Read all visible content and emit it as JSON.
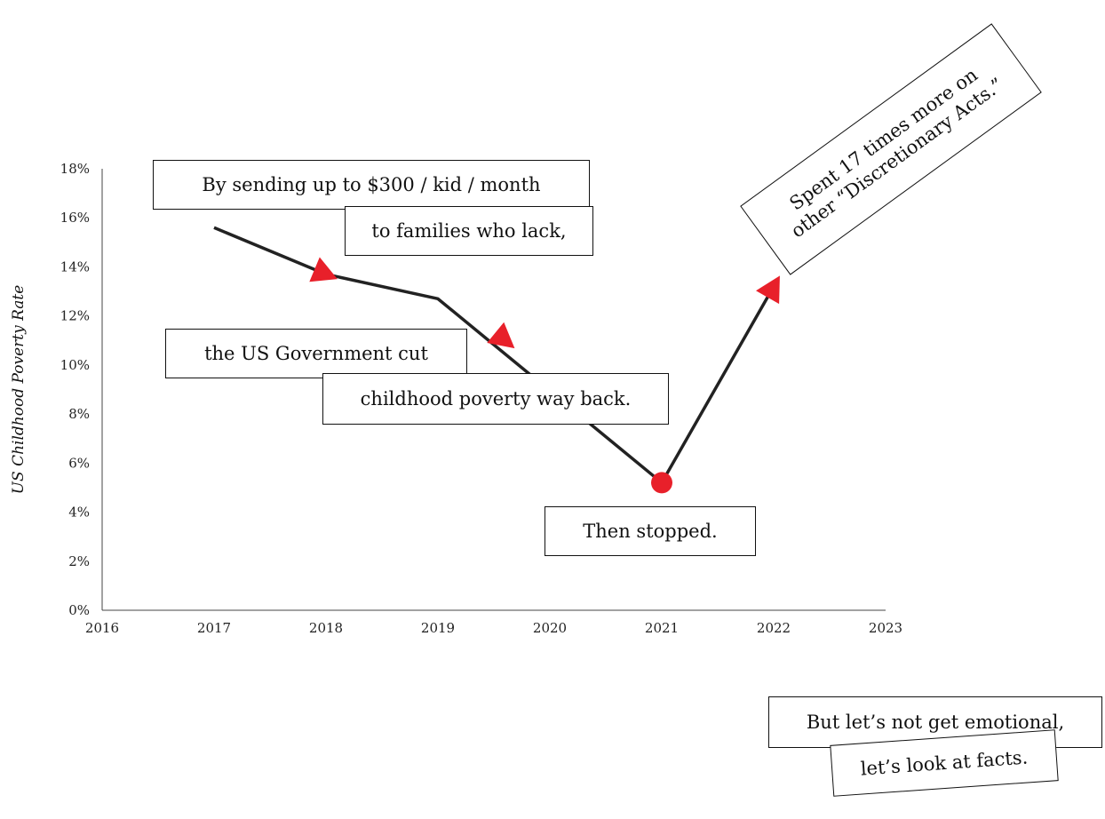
{
  "chart_data": {
    "type": "line",
    "ylabel": "US Childhood Poverty Rate",
    "xlabel": "",
    "x": [
      2017,
      2018,
      2019,
      2021,
      2022
    ],
    "values": [
      15.6,
      13.7,
      12.7,
      5.2,
      13.2
    ],
    "xlim": [
      2016,
      2023
    ],
    "ylim": [
      0,
      18
    ],
    "x_ticks": [
      "2016",
      "2017",
      "2018",
      "2019",
      "2020",
      "2021",
      "2022",
      "2023"
    ],
    "y_ticks": [
      "0%",
      "2%",
      "4%",
      "6%",
      "8%",
      "10%",
      "12%",
      "14%",
      "16%",
      "18%"
    ],
    "line_color": "#222222",
    "marker_color": "#e8202a",
    "arrow_markers": [
      {
        "x": 2018,
        "y": 13.7
      },
      {
        "x": 2019.6,
        "y": 11.0
      },
      {
        "x": 2022,
        "y": 13.2
      }
    ],
    "dot_marker": {
      "x": 2021,
      "y": 5.2
    },
    "grid": false
  },
  "annotations": {
    "c1": "By sending up to $300 / kid / month",
    "c2": "to families who lack,",
    "c3": "the US Government cut",
    "c4": "childhood poverty way back.",
    "c5": "Then stopped.",
    "c6": "But let’s not get emotional,",
    "c7": "let’s look at facts.",
    "c8_line1": "Spent 17 times more on",
    "c8_line2": "other “Discretionary Acts.”"
  }
}
